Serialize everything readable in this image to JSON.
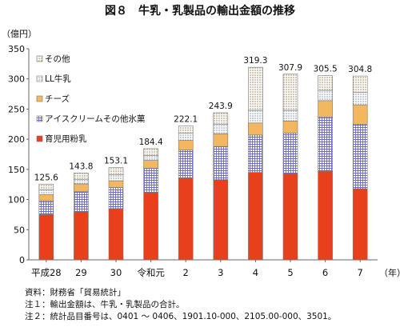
{
  "chart_data": {
    "type": "bar",
    "stacked": true,
    "title": "図８　牛乳・乳製品の輸出金額の推移",
    "ylabel": "（億円）",
    "xlabel": "（年）",
    "ylim": [
      0,
      350
    ],
    "yticks": [
      0,
      50,
      100,
      150,
      200,
      250,
      300,
      350
    ],
    "grid": false,
    "legend_position": "top-left",
    "categories": [
      "平成28",
      "29",
      "30",
      "令和元",
      "2",
      "3",
      "4",
      "5",
      "6",
      "7"
    ],
    "totals": [
      125.6,
      143.8,
      153.1,
      184.4,
      222.1,
      243.9,
      319.3,
      307.9,
      305.5,
      304.8
    ],
    "series": [
      {
        "name": "育児用粉乳",
        "color": "#e8401c",
        "pattern": "solid",
        "values": [
          75,
          80,
          85,
          112,
          136,
          133,
          145,
          143,
          147,
          118
        ]
      },
      {
        "name": "アイスクリームその他氷菓",
        "color": "#7a7ad0",
        "pattern": "grid",
        "values": [
          23,
          33,
          35,
          40,
          46,
          55,
          62,
          67,
          90,
          107
        ]
      },
      {
        "name": "チーズ",
        "color": "#f2b760",
        "pattern": "solid",
        "values": [
          10,
          13,
          11,
          13,
          16,
          21,
          20,
          20,
          27,
          32
        ]
      },
      {
        "name": "LL牛乳",
        "color": "#8898b8",
        "pattern": "dots",
        "values": [
          8,
          7,
          10,
          8,
          12,
          16,
          21,
          18,
          17,
          21
        ]
      },
      {
        "name": "その他",
        "color": "#b08a5a",
        "pattern": "dots",
        "values": [
          9.6,
          10.8,
          12.1,
          11.4,
          12.1,
          18.9,
          71.3,
          59.9,
          24.5,
          26.8
        ]
      }
    ]
  },
  "notes": [
    "資料：財務省「貿易統計」",
    "注１：輸出金額は、牛乳・乳製品の合計。",
    "注２：統計品目番号は、0401 ～ 0406、1901.10-000、2105.00-000、3501。"
  ]
}
